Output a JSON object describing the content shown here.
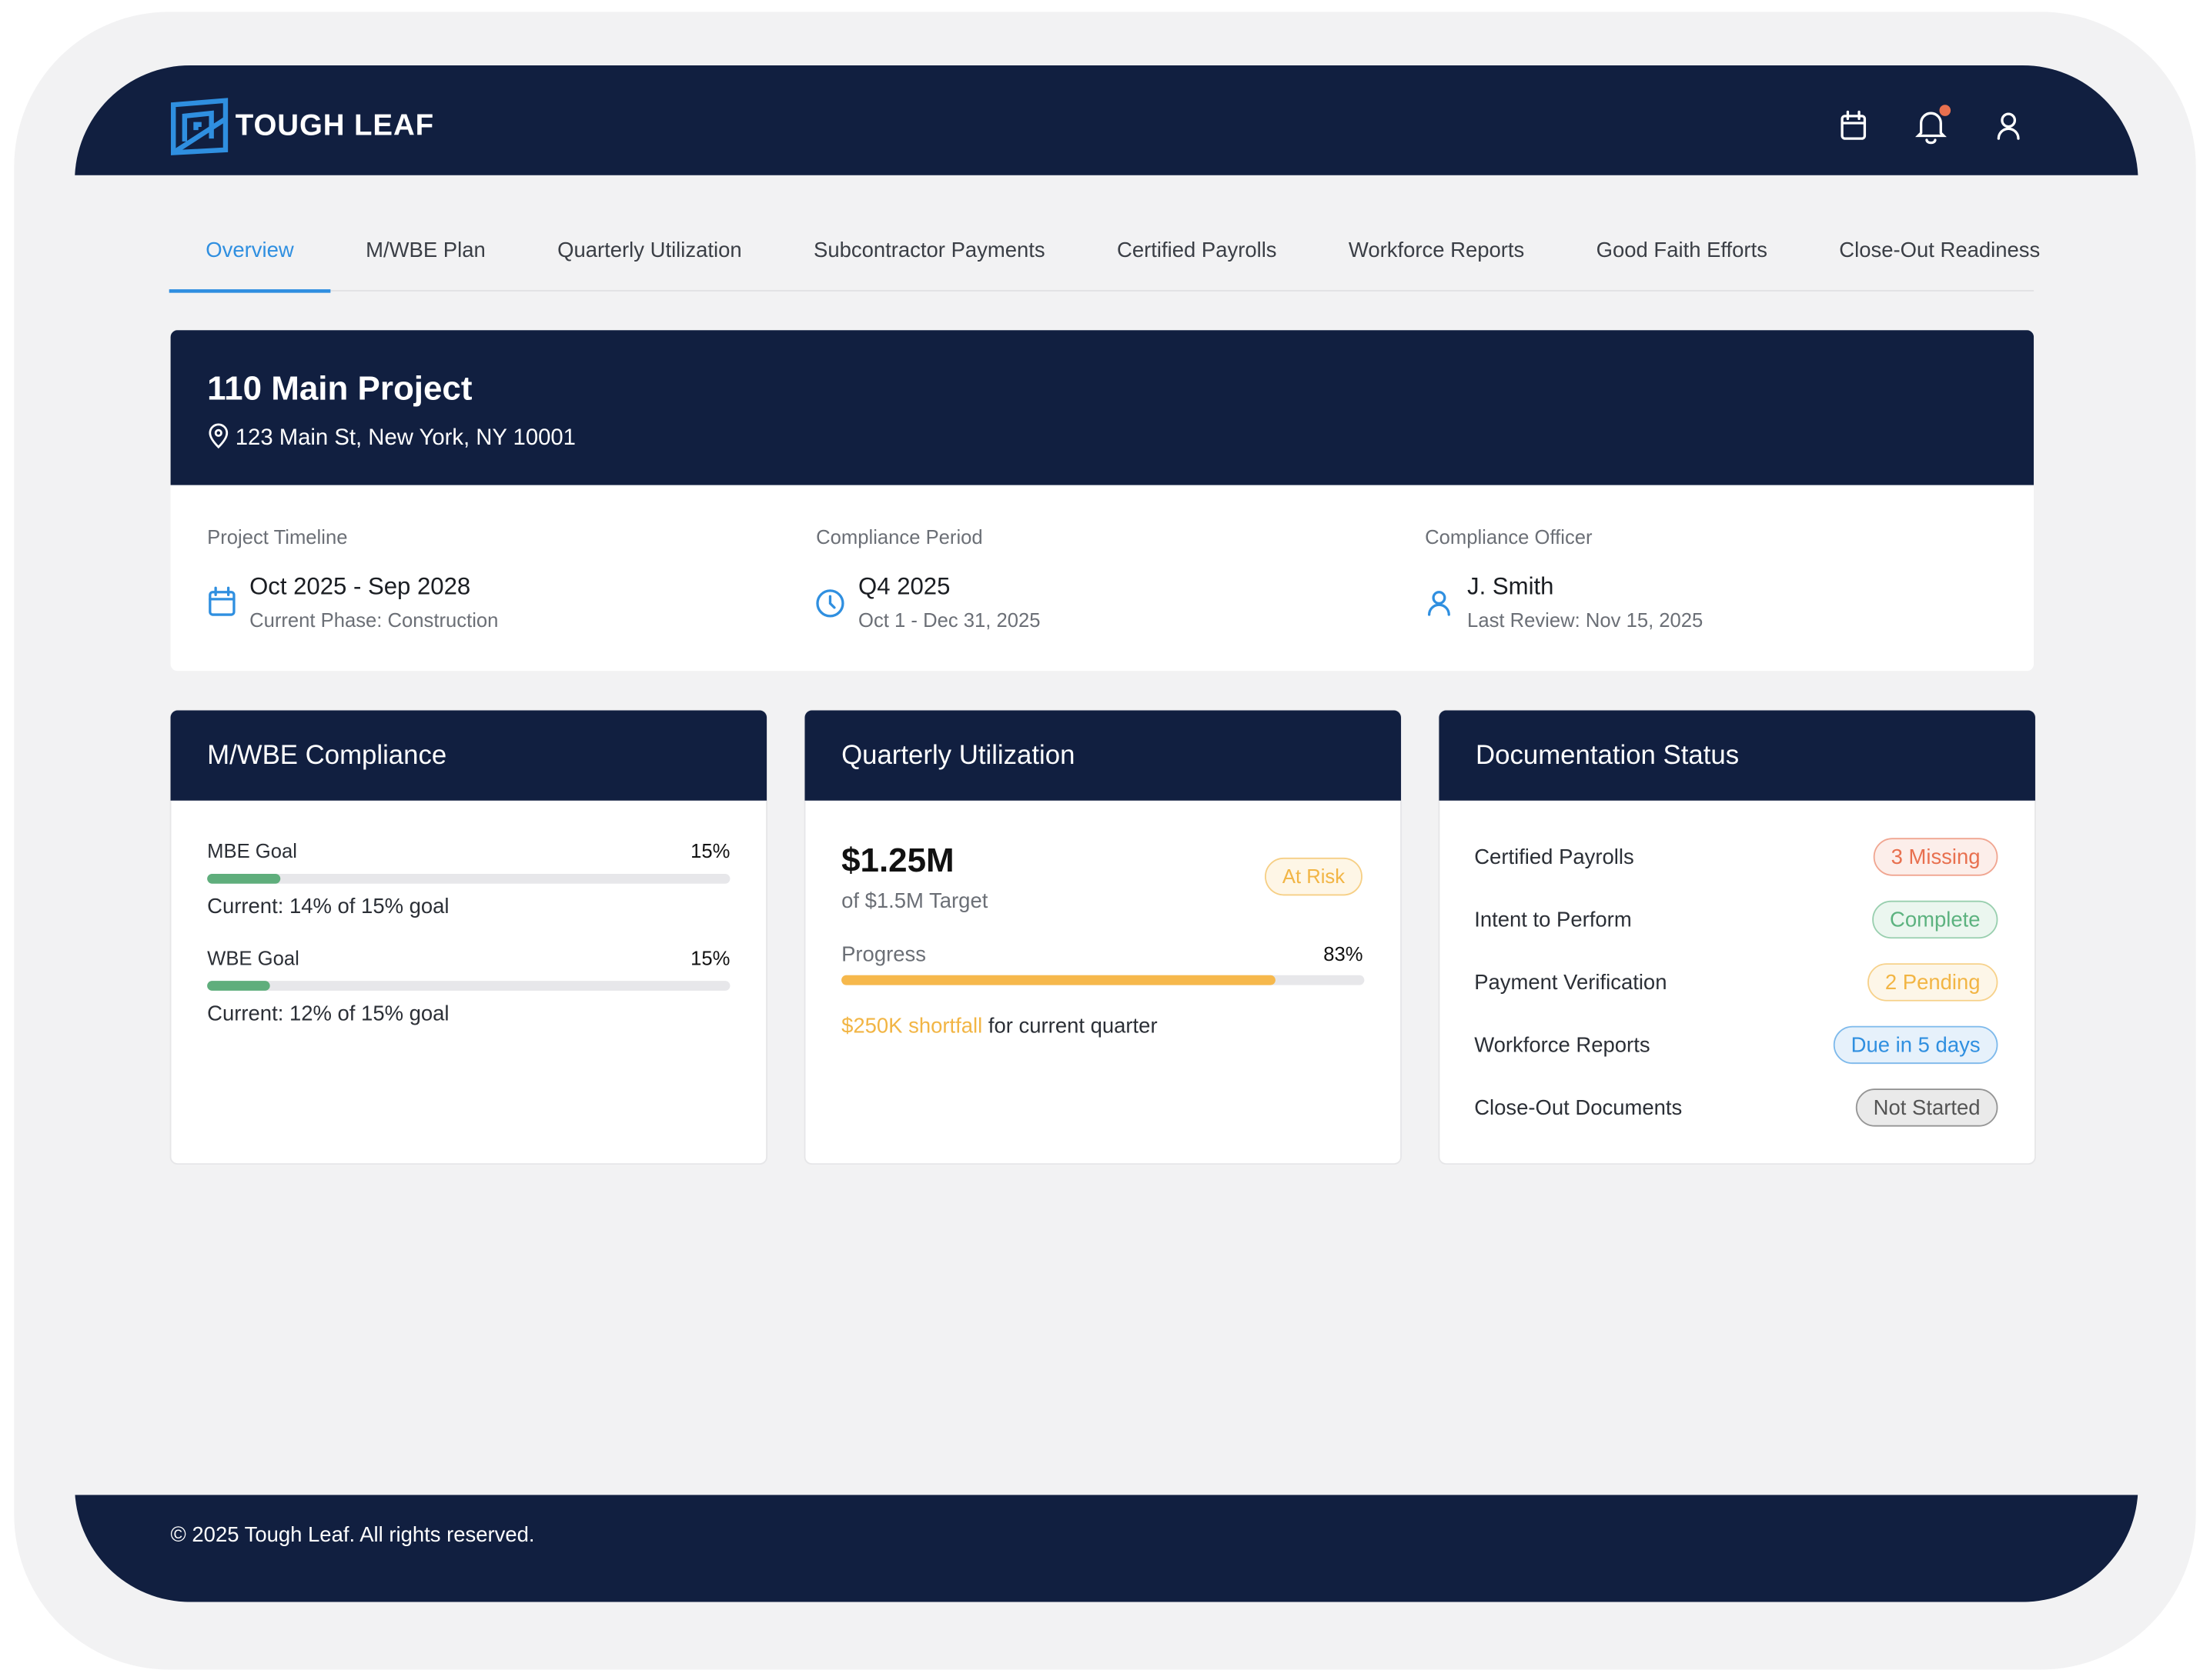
{
  "header": {
    "brand": "TOUGH LEAF"
  },
  "nav": {
    "tabs": [
      "Overview",
      "M/WBE Plan",
      "Quarterly Utilization",
      "Subcontractor Payments",
      "Certified Payrolls",
      "Workforce Reports",
      "Good Faith Efforts",
      "Close-Out Readiness"
    ],
    "active": 0
  },
  "project": {
    "name": "110 Main Project",
    "address": "123 Main St, New York, NY 10001",
    "details": [
      {
        "label": "Project Timeline",
        "value": "Oct 2025 - Sep 2028",
        "sub": "Current Phase: Construction"
      },
      {
        "label": "Compliance Period",
        "value": "Q4 2025",
        "sub": "Oct 1 - Dec 31, 2025"
      },
      {
        "label": "Compliance Officer",
        "value": "J. Smith",
        "sub": "Last Review: Nov 15, 2025"
      }
    ]
  },
  "compliance": {
    "title": "M/WBE Compliance",
    "goals": [
      {
        "name": "MBE Goal",
        "goal": "15%",
        "current": 14,
        "current_label": "Current: 14% of 15% goal"
      },
      {
        "name": "WBE Goal",
        "goal": "15%",
        "current": 12,
        "current_label": "Current: 12% of 15% goal"
      }
    ]
  },
  "utilization": {
    "title": "Quarterly Utilization",
    "amount": "$1.25M",
    "target": "of $1.5M Target",
    "status": "At Risk",
    "progress_label": "Progress",
    "progress": 83,
    "progress_value_label": "83%",
    "shortfall": "$250K shortfall",
    "shortfall_note": "for current quarter"
  },
  "documentation": {
    "title": "Documentation Status",
    "items": [
      {
        "name": "Certified Payrolls",
        "status": "3 Missing",
        "color": "#e8704f"
      },
      {
        "name": "Intent to Perform",
        "status": "Complete",
        "color": "#5cb27f"
      },
      {
        "name": "Payment Verification",
        "status": "2 Pending",
        "color": "#f2b544"
      },
      {
        "name": "Workforce Reports",
        "status": "Due in 5 days",
        "color": "#2f8fe0"
      },
      {
        "name": "Close-Out Documents",
        "status": "Not Started",
        "color": "#555555"
      }
    ]
  },
  "footer": {
    "copyright": "© 2025 Tough Leaf. All rights reserved."
  }
}
